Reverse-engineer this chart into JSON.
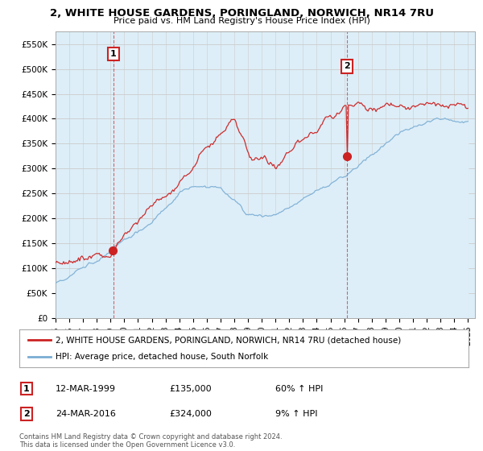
{
  "title": "2, WHITE HOUSE GARDENS, PORINGLAND, NORWICH, NR14 7RU",
  "subtitle": "Price paid vs. HM Land Registry's House Price Index (HPI)",
  "ylabel_ticks": [
    "£0",
    "£50K",
    "£100K",
    "£150K",
    "£200K",
    "£250K",
    "£300K",
    "£350K",
    "£400K",
    "£450K",
    "£500K",
    "£550K"
  ],
  "ytick_values": [
    0,
    50000,
    100000,
    150000,
    200000,
    250000,
    300000,
    350000,
    400000,
    450000,
    500000,
    550000
  ],
  "ylim": [
    0,
    575000
  ],
  "sale1_price": 135000,
  "sale1_year": 1999.2,
  "sale2_price": 324000,
  "sale2_year": 2016.2,
  "legend_line1": "2, WHITE HOUSE GARDENS, PORINGLAND, NORWICH, NR14 7RU (detached house)",
  "legend_line2": "HPI: Average price, detached house, South Norfolk",
  "footer": "Contains HM Land Registry data © Crown copyright and database right 2024.\nThis data is licensed under the Open Government Licence v3.0.",
  "line_color_red": "#cc2222",
  "line_color_blue": "#7aadd4",
  "fill_color_blue": "#ddeef8",
  "vline_color": "#cc4444",
  "background_color": "#ffffff",
  "grid_color": "#cccccc",
  "table_row1": [
    "1",
    "12-MAR-1999",
    "£135,000",
    "60% ↑ HPI"
  ],
  "table_row2": [
    "2",
    "24-MAR-2016",
    "£324,000",
    "9% ↑ HPI"
  ],
  "xlim_start": 1995,
  "xlim_end": 2025.5
}
